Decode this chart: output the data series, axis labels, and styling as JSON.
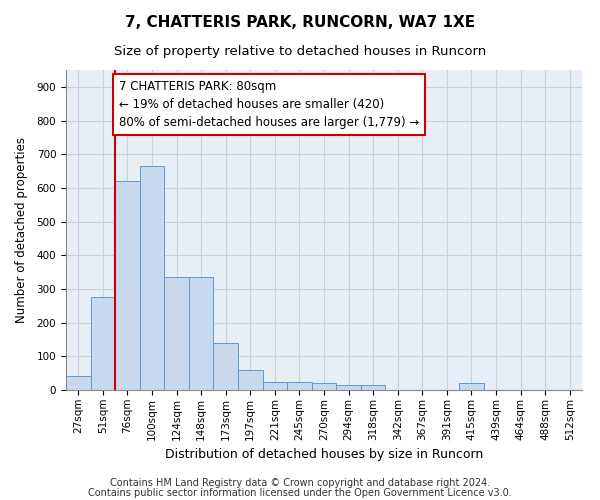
{
  "title": "7, CHATTERIS PARK, RUNCORN, WA7 1XE",
  "subtitle": "Size of property relative to detached houses in Runcorn",
  "xlabel": "Distribution of detached houses by size in Runcorn",
  "ylabel": "Number of detached properties",
  "bar_color": "#c9d9ed",
  "bar_edge_color": "#5b9bd5",
  "categories": [
    "27sqm",
    "51sqm",
    "76sqm",
    "100sqm",
    "124sqm",
    "148sqm",
    "173sqm",
    "197sqm",
    "221sqm",
    "245sqm",
    "270sqm",
    "294sqm",
    "318sqm",
    "342sqm",
    "367sqm",
    "391sqm",
    "415sqm",
    "439sqm",
    "464sqm",
    "488sqm",
    "512sqm"
  ],
  "values": [
    42,
    275,
    620,
    665,
    335,
    335,
    140,
    60,
    25,
    25,
    20,
    15,
    15,
    0,
    0,
    0,
    20,
    0,
    0,
    0,
    0
  ],
  "ylim": [
    0,
    950
  ],
  "yticks": [
    0,
    100,
    200,
    300,
    400,
    500,
    600,
    700,
    800,
    900
  ],
  "annotation_text": "7 CHATTERIS PARK: 80sqm\n← 19% of detached houses are smaller (420)\n80% of semi-detached houses are larger (1,779) →",
  "annotation_box_color": "#ffffff",
  "annotation_box_edge": "#cc0000",
  "property_line_color": "#cc0000",
  "background_color": "#ffffff",
  "grid_color": "#c8d0dc",
  "plot_bg_color": "#e8eef5",
  "footnote_line1": "Contains HM Land Registry data © Crown copyright and database right 2024.",
  "footnote_line2": "Contains public sector information licensed under the Open Government Licence v3.0.",
  "title_fontsize": 11,
  "subtitle_fontsize": 9.5,
  "xlabel_fontsize": 9,
  "ylabel_fontsize": 8.5,
  "tick_fontsize": 7.5,
  "annotation_fontsize": 8.5,
  "footnote_fontsize": 7
}
